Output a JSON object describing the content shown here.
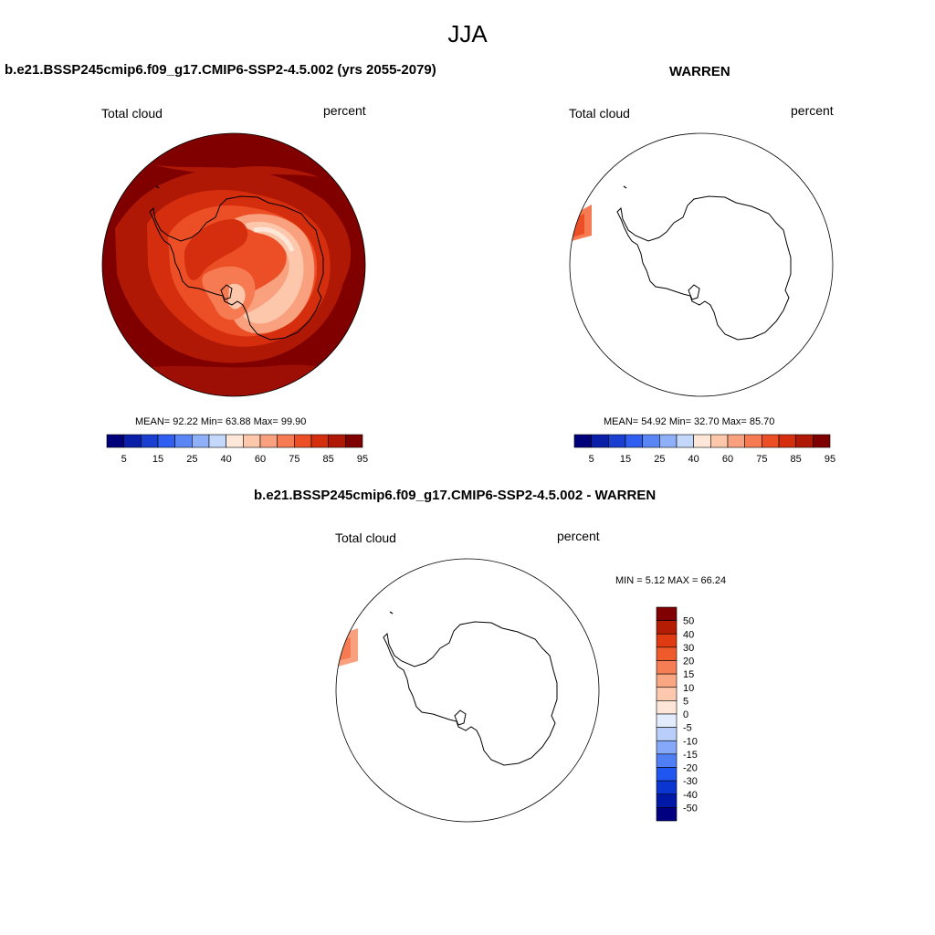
{
  "page": {
    "title": "JJA"
  },
  "panels": [
    {
      "title": "b.e21.BSSP245cmip6.f09_g17.CMIP6-SSP2-4.5.002 (yrs 2055-2079)",
      "left_label": "Total cloud",
      "right_label": "percent",
      "stats": "MEAN=  92.22  Min=  63.88  Max=  99.90"
    },
    {
      "title": "WARREN",
      "left_label": "Total cloud",
      "right_label": "percent",
      "stats": "MEAN=  54.92  Min=  32.70  Max=  85.70"
    },
    {
      "title": "b.e21.BSSP245cmip6.f09_g17.CMIP6-SSP2-4.5.002 - WARREN",
      "left_label": "Total cloud",
      "right_label": "percent",
      "stats": "MIN =   5.12 MAX =  66.24"
    }
  ],
  "colorbar_abs": {
    "colors": [
      "#00007a",
      "#0a1fa8",
      "#1a3fd0",
      "#2e5ff0",
      "#5a86f5",
      "#8fb0f8",
      "#c4d8fb",
      "#fde7d8",
      "#fcc7ab",
      "#f9a07e",
      "#f67a52",
      "#ec4e25",
      "#d42e0e",
      "#b01806",
      "#7f0000"
    ],
    "labels": [
      "5",
      "15",
      "25",
      "40",
      "60",
      "75",
      "85",
      "95"
    ]
  },
  "colorbar_diff": {
    "colors": [
      "#000080",
      "#0018a8",
      "#0a35d0",
      "#1f55f0",
      "#4f7ef5",
      "#86a8f8",
      "#b9cefa",
      "#e2ecfc",
      "#fde6d8",
      "#fcc9af",
      "#f9a682",
      "#f67e55",
      "#ef5a2c",
      "#e03a12",
      "#b51c04",
      "#800000"
    ],
    "labels": [
      "50",
      "40",
      "30",
      "20",
      "15",
      "10",
      "5",
      "0",
      "-5",
      "-10",
      "-15",
      "-20",
      "-30",
      "-40",
      "-50"
    ]
  }
}
